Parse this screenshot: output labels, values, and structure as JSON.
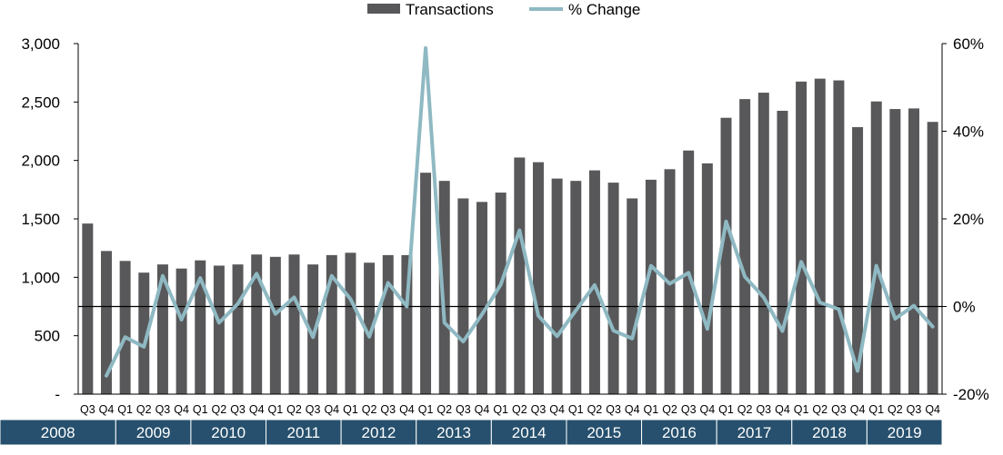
{
  "chart_data": {
    "type": "bar",
    "legend": {
      "position": "top-center",
      "items": [
        {
          "label": "Transactions",
          "kind": "bar",
          "color": "#58585a"
        },
        {
          "label": "% Change",
          "kind": "line",
          "color": "#8fb9c3"
        }
      ]
    },
    "quarters": [
      "Q3",
      "Q4",
      "Q1",
      "Q2",
      "Q3",
      "Q4",
      "Q1",
      "Q2",
      "Q3",
      "Q4",
      "Q1",
      "Q2",
      "Q3",
      "Q4",
      "Q1",
      "Q2",
      "Q3",
      "Q4",
      "Q1",
      "Q2",
      "Q3",
      "Q4",
      "Q1",
      "Q2",
      "Q3",
      "Q4",
      "Q1",
      "Q2",
      "Q3",
      "Q4",
      "Q1",
      "Q2",
      "Q3",
      "Q4",
      "Q1",
      "Q2",
      "Q3",
      "Q4",
      "Q1",
      "Q2",
      "Q3",
      "Q4",
      "Q1",
      "Q2",
      "Q3",
      "Q4"
    ],
    "years": [
      {
        "label": "2008",
        "quarters": 2
      },
      {
        "label": "2009",
        "quarters": 4
      },
      {
        "label": "2010",
        "quarters": 4
      },
      {
        "label": "2011",
        "quarters": 4
      },
      {
        "label": "2012",
        "quarters": 4
      },
      {
        "label": "2013",
        "quarters": 4
      },
      {
        "label": "2014",
        "quarters": 4
      },
      {
        "label": "2015",
        "quarters": 4
      },
      {
        "label": "2016",
        "quarters": 4
      },
      {
        "label": "2017",
        "quarters": 4
      },
      {
        "label": "2018",
        "quarters": 4
      },
      {
        "label": "2019",
        "quarters": 4
      }
    ],
    "series": [
      {
        "name": "Transactions",
        "type": "bar",
        "axis": "left",
        "values": [
          1460,
          1225,
          1140,
          1040,
          1110,
          1075,
          1145,
          1100,
          1110,
          1195,
          1175,
          1195,
          1110,
          1190,
          1210,
          1125,
          1190,
          1190,
          1895,
          1825,
          1675,
          1645,
          1725,
          2025,
          1985,
          1845,
          1825,
          1915,
          1810,
          1675,
          1835,
          1925,
          2085,
          1975,
          2365,
          2525,
          2580,
          2425,
          2675,
          2700,
          2685,
          2285,
          2505,
          2440,
          2445,
          2330
        ]
      },
      {
        "name": "% Change",
        "type": "line",
        "axis": "right",
        "values": [
          null,
          -15.8,
          -7,
          -9.2,
          7,
          -3,
          6.5,
          -3.7,
          0.6,
          7.5,
          -1.7,
          2.1,
          -7,
          7,
          1.7,
          -6.9,
          5.4,
          0,
          59,
          -3.7,
          -8,
          -1.8,
          5,
          17.4,
          -2.1,
          -6.8,
          -0.9,
          4.9,
          -5.5,
          -7.3,
          9.3,
          5.2,
          7.7,
          -5.1,
          19.4,
          6.8,
          2.1,
          -5.6,
          10.2,
          0.9,
          -0.6,
          -14.7,
          9.3,
          -2.8,
          0.2,
          -4.6
        ]
      }
    ],
    "y_left": {
      "min": 0,
      "max": 3000,
      "ticks": [
        {
          "value": 0,
          "label": "-"
        },
        {
          "value": 500,
          "label": "500"
        },
        {
          "value": 1000,
          "label": "1,000"
        },
        {
          "value": 1500,
          "label": "1,500"
        },
        {
          "value": 2000,
          "label": "2,000"
        },
        {
          "value": 2500,
          "label": "2,500"
        },
        {
          "value": 3000,
          "label": "3,000"
        }
      ]
    },
    "y_right": {
      "min": -20,
      "max": 60,
      "ticks": [
        {
          "value": -20,
          "label": "-20%"
        },
        {
          "value": 0,
          "label": "0%"
        },
        {
          "value": 20,
          "label": "20%"
        },
        {
          "value": 40,
          "label": "40%"
        },
        {
          "value": 60,
          "label": "60%"
        }
      ]
    },
    "zero_line": {
      "axis": "right",
      "value": 0
    },
    "grid": false
  }
}
